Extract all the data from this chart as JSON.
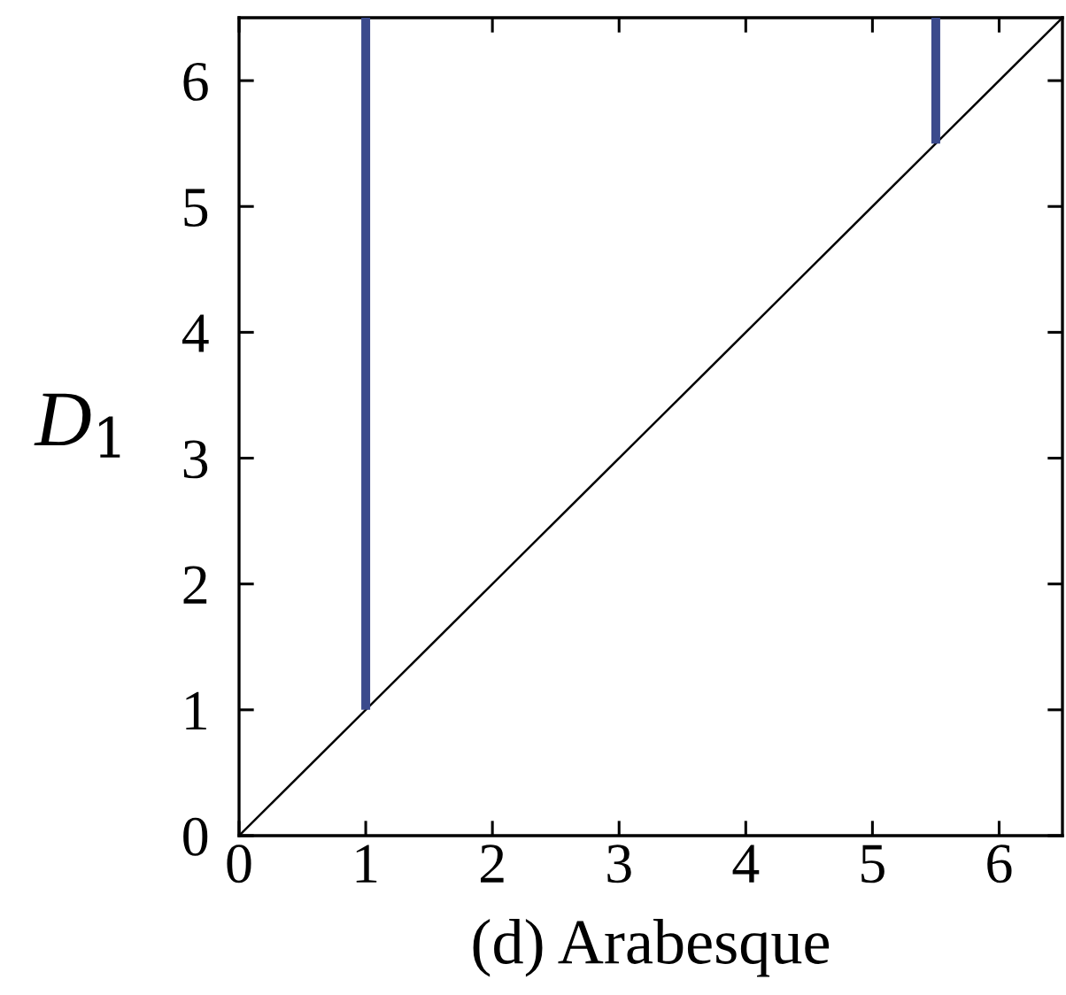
{
  "chart_data": {
    "type": "bar",
    "xlabel": "(d) Arabesque",
    "ylabel": "D$_{1}$",
    "xlim": [
      0,
      6.5
    ],
    "ylim": [
      0,
      6.5
    ],
    "xticks": [
      0,
      1,
      2,
      3,
      4,
      5,
      6
    ],
    "yticks": [
      0,
      1,
      2,
      3,
      4,
      5,
      6
    ],
    "series": [
      {
        "type": "line",
        "x": [
          0,
          6.5
        ],
        "values": [
          0,
          6.5
        ],
        "color": "#000000"
      },
      {
        "x": [
          1,
          5.5
        ],
        "base": [
          1,
          5.5
        ],
        "values": [
          5.5,
          1
        ],
        "color": "#3b4a8c"
      }
    ]
  }
}
